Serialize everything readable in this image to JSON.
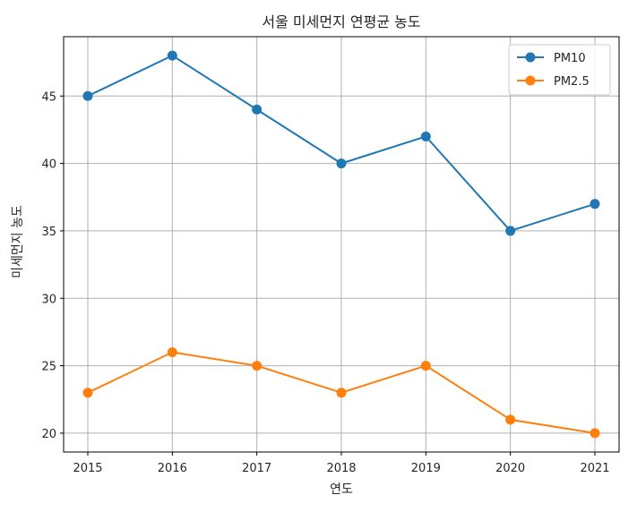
{
  "chart_data": {
    "type": "line",
    "title": "서울 미세먼지 연평균 농도",
    "xlabel": "연도",
    "ylabel": "미세먼지 농도",
    "x": [
      "2015",
      "2016",
      "2017",
      "2018",
      "2019",
      "2020",
      "2021"
    ],
    "yticks": [
      "20",
      "25",
      "30",
      "35",
      "40",
      "45"
    ],
    "ylim": [
      18.6,
      49.4
    ],
    "grid": true,
    "legend_position": "top-right",
    "series": [
      {
        "name": "PM10",
        "color": "#1f77b4",
        "marker": "circle",
        "values": [
          45,
          48,
          44,
          40,
          42,
          35,
          37
        ]
      },
      {
        "name": "PM2.5",
        "color": "#ff7f0e",
        "marker": "circle",
        "values": [
          23,
          26,
          25,
          23,
          25,
          21,
          20
        ]
      }
    ]
  }
}
